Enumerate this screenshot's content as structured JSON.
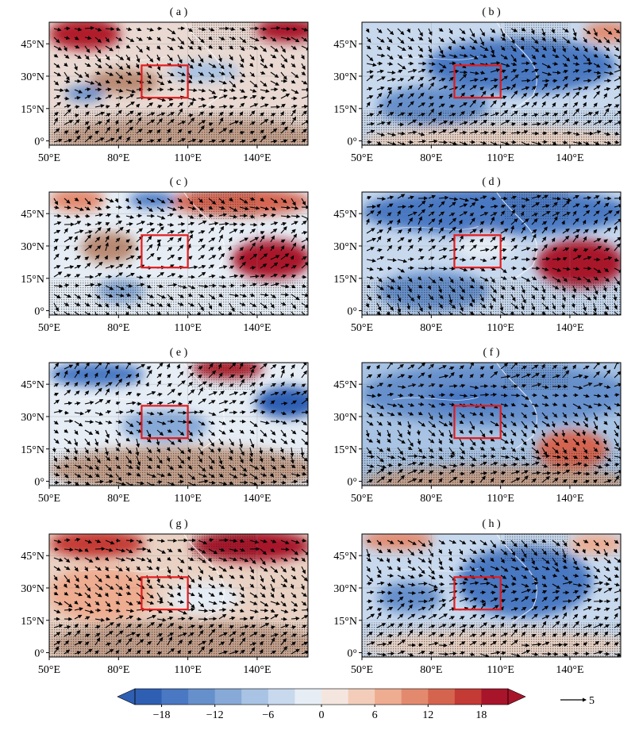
{
  "panels": [
    {
      "label": "( a )",
      "anomaly": "warm-north-mixed"
    },
    {
      "label": "( b )",
      "anomaly": "cool"
    },
    {
      "label": "( c )",
      "anomaly": "warm-northwest-pacific"
    },
    {
      "label": "( d )",
      "anomaly": "cool-with-pacific-anticyclone"
    },
    {
      "label": "( e )",
      "anomaly": "cool-north-warm-south"
    },
    {
      "label": "( f )",
      "anomaly": "cool-broad"
    },
    {
      "label": "( g )",
      "anomaly": "warm-broad"
    },
    {
      "label": "( h )",
      "anomaly": "cool-central"
    }
  ],
  "axes": {
    "x_ticks": [
      "50°E",
      "80°E",
      "110°E",
      "140°E"
    ],
    "y_ticks": [
      "0°",
      "15°N",
      "30°N",
      "45°N"
    ]
  },
  "colorbar": {
    "ticks": [
      "−18",
      "−12",
      "−6",
      "0",
      "6",
      "12",
      "18"
    ],
    "colors": [
      "#2f5fb3",
      "#4a78c2",
      "#6690cc",
      "#86a9d7",
      "#a8c3e3",
      "#c8d9ee",
      "#e6edf5",
      "#f4e6df",
      "#f3cdb9",
      "#eeac90",
      "#e38a6e",
      "#d5644f",
      "#c43a35",
      "#a8152a"
    ]
  },
  "reference_vector": {
    "label": "5"
  },
  "region_box_color": "#e41a1c"
}
